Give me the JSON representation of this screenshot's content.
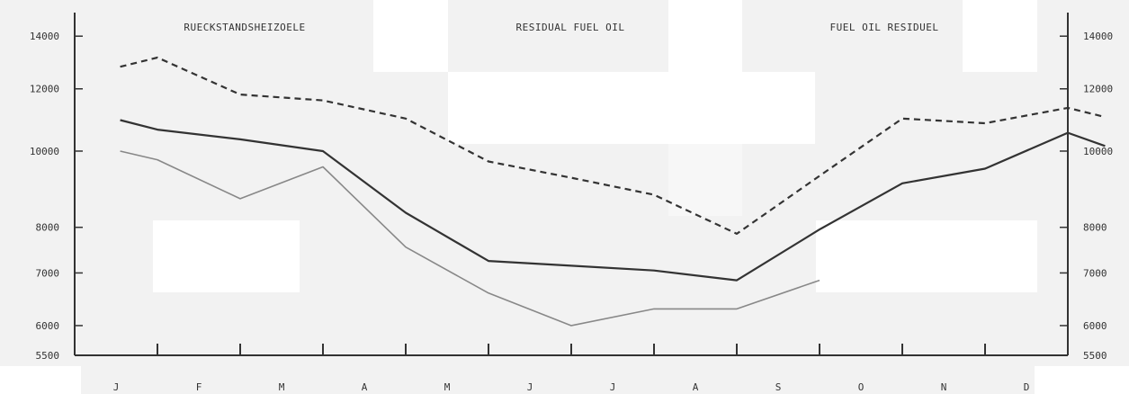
{
  "chart_data": {
    "type": "line",
    "titles": [
      "RUECKSTANDSHEIZOELE",
      "RESIDUAL FUEL OIL",
      "FUEL OIL RESIDUEL"
    ],
    "categories": [
      "J",
      "F",
      "M",
      "A",
      "M",
      "J",
      "J",
      "A",
      "S",
      "O",
      "N",
      "D"
    ],
    "y_ticks": [
      5500,
      6000,
      7000,
      8000,
      10000,
      12000,
      14000
    ],
    "ylim": [
      5500,
      15000
    ],
    "yscale": "log",
    "grid": false,
    "series": [
      {
        "style": "dashed",
        "color": "#333333",
        "x": [
          0.55,
          1,
          2,
          3,
          4,
          5,
          6,
          7,
          8,
          9,
          10,
          11,
          12,
          12.45
        ],
        "values": [
          12800,
          13150,
          11800,
          11600,
          11000,
          9700,
          9250,
          8800,
          7850,
          9300,
          11000,
          10850,
          11350,
          11050
        ]
      },
      {
        "style": "solid",
        "color": "#333333",
        "x": [
          0.55,
          1,
          2,
          3,
          4,
          5,
          6,
          7,
          8,
          9,
          10,
          11,
          12,
          12.45
        ],
        "values": [
          10950,
          10650,
          10350,
          10000,
          8350,
          7250,
          7150,
          7050,
          6850,
          7950,
          9100,
          9500,
          10550,
          10150
        ]
      },
      {
        "style": "solid",
        "color": "#888888",
        "x": [
          0.55,
          1,
          2,
          3,
          4,
          5,
          6,
          7,
          8,
          9
        ],
        "values": [
          10000,
          9750,
          8700,
          9550,
          7550,
          6600,
          6000,
          6300,
          6300,
          6850
        ]
      }
    ]
  }
}
